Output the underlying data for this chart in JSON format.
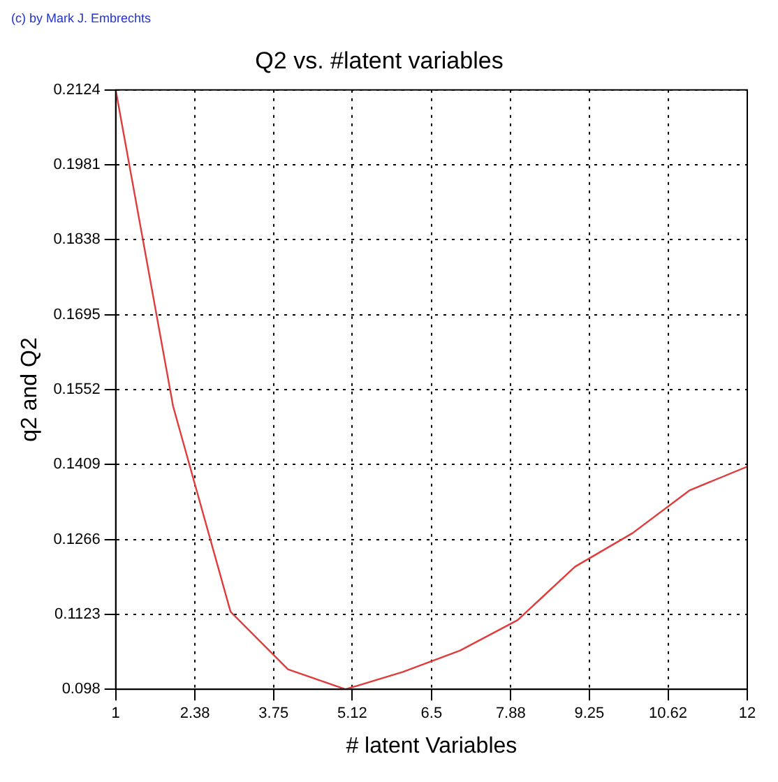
{
  "chart_data": {
    "type": "line",
    "title": "Q2 vs. #latent variables",
    "xlabel": "# latent Variables",
    "ylabel": "q2 and Q2",
    "annotations": [
      "(c) by Mark J. Embrechts"
    ],
    "x": [
      1,
      2,
      3,
      4,
      5,
      6,
      7,
      8,
      9,
      10,
      11,
      12
    ],
    "series": [
      {
        "color": "#e03c3c",
        "values": [
          0.2124,
          0.152,
          0.1128,
          0.1018,
          0.098,
          0.1013,
          0.1054,
          0.1112,
          0.1214,
          0.1278,
          0.136,
          0.1405
        ]
      }
    ],
    "xlim": [
      1,
      12
    ],
    "xticks": [
      1,
      2.38,
      3.75,
      5.12,
      6.5,
      7.88,
      9.25,
      10.62,
      12
    ],
    "ylim": [
      0.098,
      0.2124
    ],
    "yticks": [
      0.098,
      0.1123,
      0.1266,
      0.1409,
      0.1552,
      0.1695,
      0.1838,
      0.1981,
      0.2124
    ],
    "grid": true,
    "legend": false,
    "marker": "none",
    "line_style": "solid"
  }
}
